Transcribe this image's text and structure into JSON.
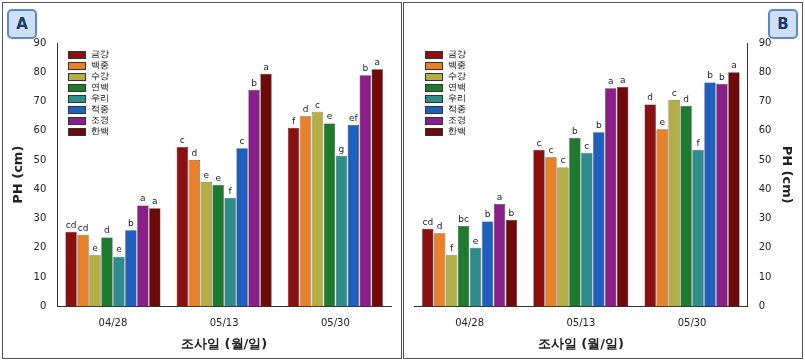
{
  "chart_data": [
    {
      "type": "bar",
      "title": "A",
      "x_label": "조사일 (월/일)",
      "y_label": "PH (cm)",
      "categories": [
        "04/28",
        "05/13",
        "05/30"
      ],
      "ylim": [
        0,
        90
      ],
      "yticks": [
        0,
        10,
        20,
        30,
        40,
        50,
        60,
        70,
        80,
        90
      ],
      "grid": false,
      "legend": "upper left",
      "series": [
        {
          "name": "금강",
          "color": "#8b1010",
          "values": [
            25.5,
            54.5,
            61
          ],
          "letters": [
            "cd",
            "c",
            "f"
          ]
        },
        {
          "name": "백중",
          "color": "#e8822a",
          "values": [
            24.5,
            50,
            65
          ],
          "letters": [
            "cd",
            "d",
            "d"
          ]
        },
        {
          "name": "수강",
          "color": "#b5ad45",
          "values": [
            17.5,
            42.5,
            66.5
          ],
          "letters": [
            "e",
            "e",
            "c"
          ]
        },
        {
          "name": "연백",
          "color": "#1e7a2e",
          "values": [
            23.5,
            41.5,
            62.5
          ],
          "letters": [
            "d",
            "e",
            "e"
          ]
        },
        {
          "name": "우리",
          "color": "#2e8c8c",
          "values": [
            17,
            37,
            51.5
          ],
          "letters": [
            "e",
            "f",
            "g"
          ]
        },
        {
          "name": "적중",
          "color": "#1f5fbf",
          "values": [
            26,
            54,
            62
          ],
          "letters": [
            "b",
            "c",
            "ef"
          ]
        },
        {
          "name": "조경",
          "color": "#8a1f8a",
          "values": [
            34.5,
            74,
            79
          ],
          "letters": [
            "a",
            "b",
            "b"
          ]
        },
        {
          "name": "한백",
          "color": "#6e0a0a",
          "values": [
            33.5,
            79.5,
            81
          ],
          "letters": [
            "a",
            "a",
            "a"
          ]
        }
      ]
    },
    {
      "type": "bar",
      "title": "B",
      "x_label": "조사일 (월/일)",
      "y_label": "PH (cm)",
      "categories": [
        "04/28",
        "05/13",
        "05/30"
      ],
      "ylim": [
        0,
        90
      ],
      "yticks": [
        0,
        10,
        20,
        30,
        40,
        50,
        60,
        70,
        80,
        90
      ],
      "grid": false,
      "legend": "upper left",
      "series": [
        {
          "name": "금강",
          "color": "#8b1010",
          "values": [
            26.5,
            53.5,
            69
          ],
          "letters": [
            "cd",
            "c",
            "d"
          ]
        },
        {
          "name": "백중",
          "color": "#e8822a",
          "values": [
            25,
            51,
            60.5
          ],
          "letters": [
            "d",
            "c",
            "e"
          ]
        },
        {
          "name": "수강",
          "color": "#b5ad45",
          "values": [
            17.5,
            47.5,
            70.5
          ],
          "letters": [
            "f",
            "c",
            "c"
          ]
        },
        {
          "name": "연백",
          "color": "#1e7a2e",
          "values": [
            27.5,
            57.5,
            68.5
          ],
          "letters": [
            "bc",
            "b",
            "d"
          ]
        },
        {
          "name": "우리",
          "color": "#2e8c8c",
          "values": [
            20,
            52.5,
            53.5
          ],
          "letters": [
            "e",
            "c",
            "f"
          ]
        },
        {
          "name": "적중",
          "color": "#1f5fbf",
          "values": [
            29,
            59.5,
            76.5
          ],
          "letters": [
            "b",
            "b",
            "b"
          ]
        },
        {
          "name": "조경",
          "color": "#8a1f8a",
          "values": [
            35,
            74.5,
            76
          ],
          "letters": [
            "a",
            "a",
            "b"
          ]
        },
        {
          "name": "한백",
          "color": "#6e0a0a",
          "values": [
            29.5,
            75,
            80
          ],
          "letters": [
            "b",
            "a",
            "a"
          ]
        }
      ]
    }
  ]
}
